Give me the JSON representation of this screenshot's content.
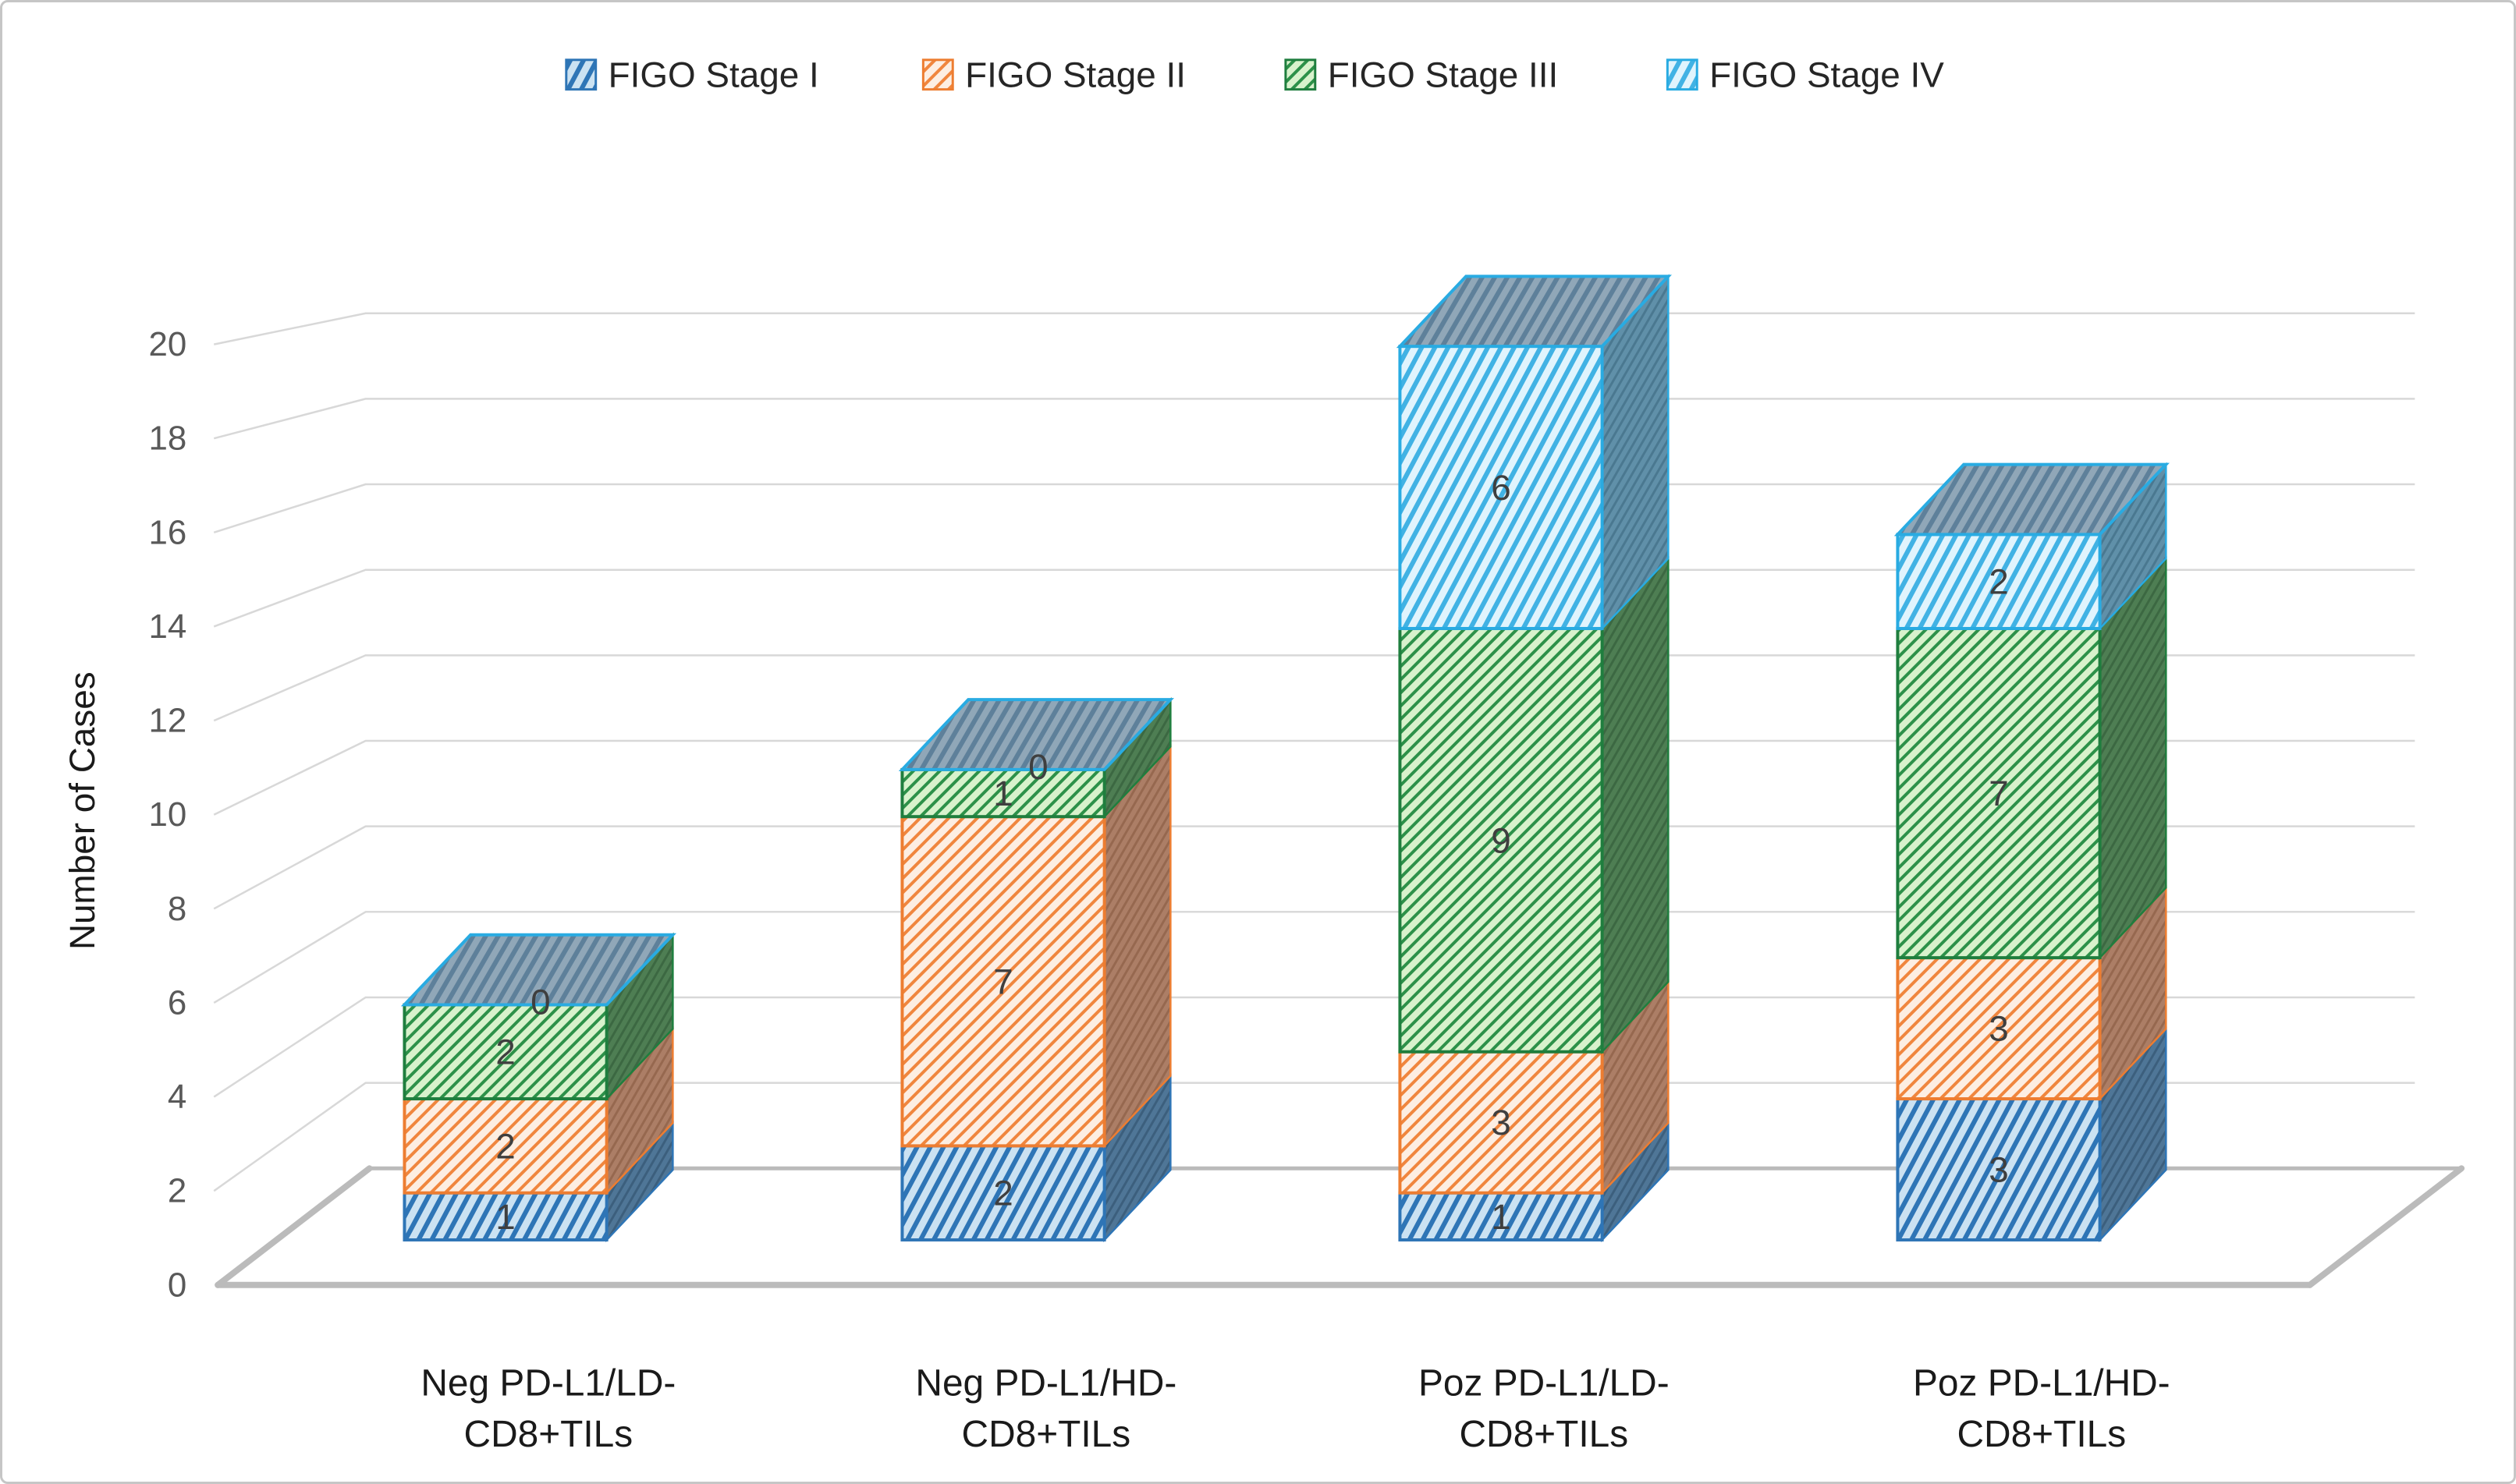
{
  "figure": {
    "background": "#ffffff",
    "border_color": "#c6c6c6"
  },
  "chart_data": {
    "type": "bar",
    "subtype": "3d-stacked-column",
    "title": "",
    "ylabel": "Number of Cases",
    "xlabel": "",
    "ylim": [
      0,
      20
    ],
    "ytick_step": 2,
    "yticks": [
      "0",
      "2",
      "4",
      "6",
      "8",
      "10",
      "12",
      "14",
      "16",
      "18",
      "20"
    ],
    "grid": true,
    "legend_position": "top",
    "data_labels": true,
    "categories": [
      "Neg PD-L1/LD-CD8+TILs",
      "Neg PD-L1/HD-CD8+TILs",
      "Poz PD-L1/LD-CD8+TILs",
      "Poz PD-L1/HD-CD8+TILs"
    ],
    "category_label_lines": [
      [
        "Neg PD-L1/LD-",
        "CD8+TILs"
      ],
      [
        "Neg PD-L1/HD-",
        "CD8+TILs"
      ],
      [
        "Poz PD-L1/LD-",
        "CD8+TILs"
      ],
      [
        "Poz PD-L1/HD-",
        "CD8+TILs"
      ]
    ],
    "series": [
      {
        "name": "FIGO Stage I",
        "values": [
          1,
          2,
          1,
          3
        ],
        "stroke": "#2E75B6",
        "fill_bg": "#CBE2F2",
        "hatch": "#2E75B6",
        "side_bg": "#4F7697",
        "side_hatch": "#3C5F7D",
        "hatch_angle": 28,
        "hatch_width": 6,
        "hatch_gap": 15
      },
      {
        "name": "FIGO Stage II",
        "values": [
          2,
          7,
          3,
          3
        ],
        "stroke": "#ED7D31",
        "fill_bg": "#FDEEE2",
        "hatch": "#F0863E",
        "side_bg": "#AC7E66",
        "side_hatch": "#96684F",
        "hatch_angle": 45,
        "hatch_width": 4,
        "hatch_gap": 13
      },
      {
        "name": "FIGO Stage III",
        "values": [
          2,
          1,
          9,
          7
        ],
        "stroke": "#1F7E3E",
        "fill_bg": "#D8F2CC",
        "hatch": "#2D9149",
        "side_bg": "#4E7E53",
        "side_hatch": "#3C6842",
        "hatch_angle": 45,
        "hatch_width": 4,
        "hatch_gap": 12
      },
      {
        "name": "FIGO Stage IV",
        "values": [
          0,
          0,
          6,
          2
        ],
        "stroke": "#29ABE2",
        "fill_bg": "#E0F4FD",
        "hatch": "#41B2E4",
        "side_bg": "#6090A9",
        "side_hatch": "#4A7890",
        "hatch_angle": 28,
        "hatch_width": 6,
        "hatch_gap": 15
      }
    ],
    "top_face": {
      "bg": "#90A7B8",
      "hatch": "#5E809A"
    },
    "colors": {
      "gridline": "#D8D8D8",
      "wall": "#BBBBBB",
      "tick_text": "#595959",
      "segment_label": "#3F3F3F",
      "category_text": "#1A1A1A",
      "legend_text": "#262626",
      "axis_title_text": "#1A1A1A"
    }
  }
}
